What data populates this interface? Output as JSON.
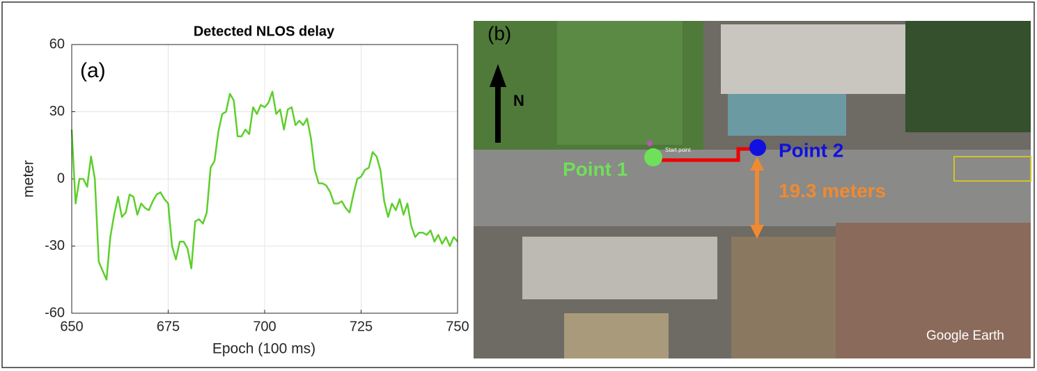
{
  "chart_data": {
    "type": "line",
    "title": "Detected NLOS delay",
    "annotation": "(a)",
    "x_label": "Epoch (100 ms)",
    "y_label": "meter",
    "color": "#5ccf2a",
    "grid": true,
    "xlim": [
      650,
      750
    ],
    "ylim": [
      -60,
      60
    ],
    "xticks": [
      650,
      675,
      700,
      725,
      750
    ],
    "yticks": [
      -60,
      -30,
      0,
      30,
      60
    ],
    "x": [
      650,
      651,
      652,
      653,
      654,
      655,
      656,
      657,
      658,
      659,
      660,
      661,
      662,
      663,
      664,
      665,
      666,
      667,
      668,
      669,
      670,
      671,
      672,
      673,
      674,
      675,
      676,
      677,
      678,
      679,
      680,
      681,
      682,
      683,
      684,
      685,
      686,
      687,
      688,
      689,
      690,
      691,
      692,
      693,
      694,
      695,
      696,
      697,
      698,
      699,
      700,
      701,
      702,
      703,
      704,
      705,
      706,
      707,
      708,
      709,
      710,
      711,
      712,
      713,
      714,
      715,
      716,
      717,
      718,
      719,
      720,
      721,
      722,
      723,
      724,
      725,
      726,
      727,
      728,
      729,
      730,
      731,
      732,
      733,
      734,
      735,
      736,
      737,
      738,
      739,
      740,
      741,
      742,
      743,
      744,
      745,
      746,
      747,
      748,
      749,
      750
    ],
    "values": [
      22,
      -11,
      0,
      0,
      -3.5,
      10,
      0,
      -37,
      -41,
      -45,
      -26,
      -16,
      -8,
      -17,
      -15,
      -7,
      -8,
      -16,
      -11,
      -13,
      -14,
      -10,
      -7,
      -6,
      -9,
      -11,
      -30,
      -36,
      -28,
      -28,
      -31,
      -40,
      -19,
      -18,
      -20,
      -15,
      5,
      8,
      21,
      29,
      30,
      38,
      35,
      19,
      19,
      22,
      20,
      32,
      29,
      33,
      32,
      34,
      39,
      29,
      31,
      22,
      31,
      32,
      24,
      26,
      24,
      27,
      18,
      4,
      -2,
      -2,
      -3,
      -6,
      -11,
      -11,
      -10,
      -13,
      -15,
      -7,
      0,
      1,
      4,
      5,
      12,
      10,
      4,
      -10,
      -17,
      -11,
      -14,
      -9,
      -16,
      -11,
      -21,
      -26,
      -24,
      -24,
      -25,
      -23,
      -28,
      -25,
      -29,
      -26,
      -30,
      -26,
      -28
    ]
  },
  "map": {
    "panel_label": "(b)",
    "north": "N",
    "start_label": "Start point",
    "point1": "Point 1",
    "point2": "Point 2",
    "distance": "19.3 meters",
    "watermark": "Google Earth"
  }
}
